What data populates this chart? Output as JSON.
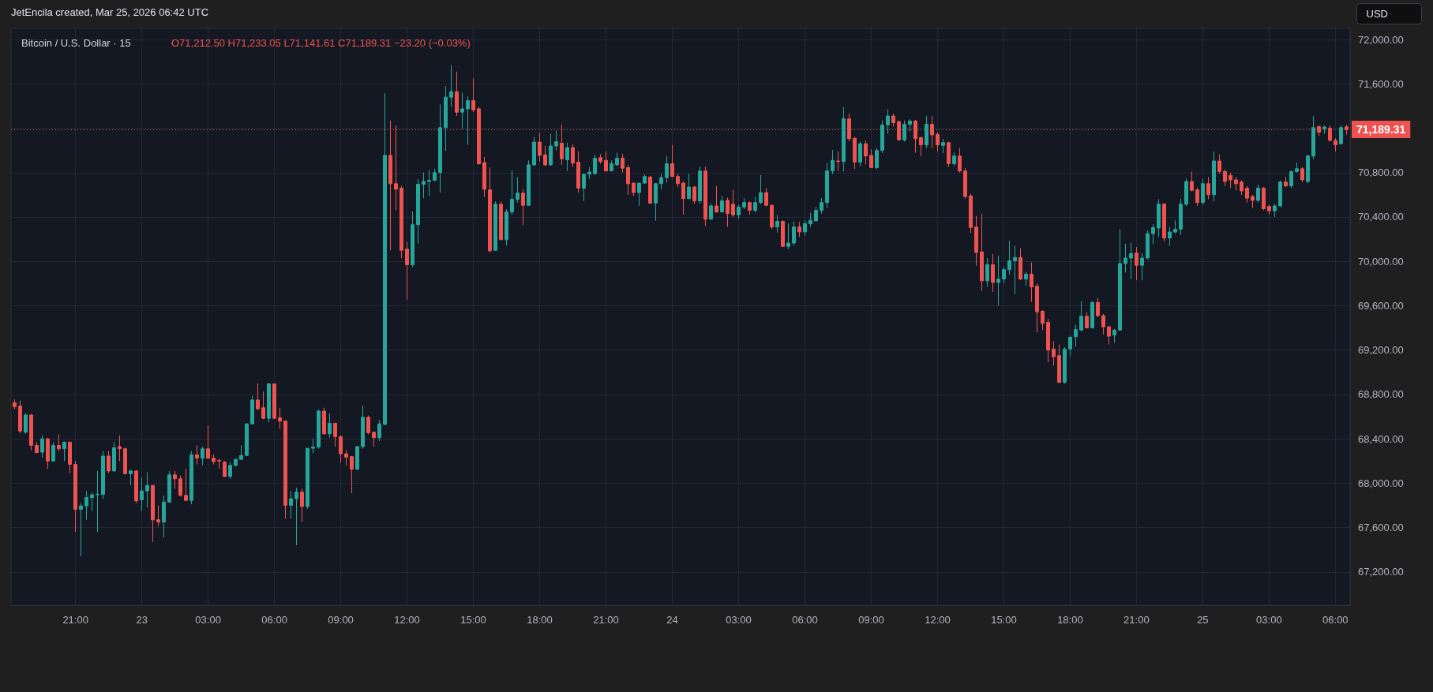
{
  "chart_data": {
    "type": "candlestick",
    "title": "Bitcoin / U.S. Dollar · 15",
    "subtitle": "O71,212.50 H71,233.05 L71,141.61 C71,189.31 −23.20 (−0.03%)",
    "annotations": [
      "JetEncila created, Mar 25, 2026 06:42 UTC",
      "USD"
    ],
    "grid": true,
    "xlim": [
      "2026-03-22T18:05",
      "2026-03-25T06:40"
    ],
    "ylim": [
      66900,
      72100
    ],
    "xticks": [
      {
        "value": "2026-03-22T21:00",
        "label": "21:00"
      },
      {
        "value": "2026-03-23T00:00",
        "label": "23"
      },
      {
        "value": "2026-03-23T03:00",
        "label": "03:00"
      },
      {
        "value": "2026-03-23T06:00",
        "label": "06:00"
      },
      {
        "value": "2026-03-23T09:00",
        "label": "09:00"
      },
      {
        "value": "2026-03-23T12:00",
        "label": "12:00"
      },
      {
        "value": "2026-03-23T15:00",
        "label": "15:00"
      },
      {
        "value": "2026-03-23T18:00",
        "label": "18:00"
      },
      {
        "value": "2026-03-23T21:00",
        "label": "21:00"
      },
      {
        "value": "2026-03-24T00:00",
        "label": "24"
      },
      {
        "value": "2026-03-24T03:00",
        "label": "03:00"
      },
      {
        "value": "2026-03-24T06:00",
        "label": "06:00"
      },
      {
        "value": "2026-03-24T09:00",
        "label": "09:00"
      },
      {
        "value": "2026-03-24T12:00",
        "label": "12:00"
      },
      {
        "value": "2026-03-24T15:00",
        "label": "15:00"
      },
      {
        "value": "2026-03-24T18:00",
        "label": "18:00"
      },
      {
        "value": "2026-03-24T21:00",
        "label": "21:00"
      },
      {
        "value": "2026-03-25T00:00",
        "label": "25"
      },
      {
        "value": "2026-03-25T03:00",
        "label": "03:00"
      },
      {
        "value": "2026-03-25T06:00",
        "label": "06:00"
      }
    ],
    "yticks": [
      {
        "value": 67200,
        "label": "67,200.00"
      },
      {
        "value": 67600,
        "label": "67,600.00"
      },
      {
        "value": 68000,
        "label": "68,000.00"
      },
      {
        "value": 68400,
        "label": "68,400.00"
      },
      {
        "value": 68800,
        "label": "68,800.00"
      },
      {
        "value": 69200,
        "label": "69,200.00"
      },
      {
        "value": 69600,
        "label": "69,600.00"
      },
      {
        "value": 70000,
        "label": "70,000.00"
      },
      {
        "value": 70400,
        "label": "70,400.00"
      },
      {
        "value": 70800,
        "label": "70,800.00"
      },
      {
        "value": 71200,
        "label": null
      },
      {
        "value": 71600,
        "label": "71,600.00"
      },
      {
        "value": 72000,
        "label": "72,000.00"
      }
    ],
    "ref_lines": [
      {
        "axis": "y",
        "value": 71189.31,
        "label": "71,189.31",
        "color": "#ef5350",
        "line_style": "dotted"
      }
    ],
    "x": [
      "2026-03-22T18:15",
      "2026-03-22T18:30",
      "2026-03-22T18:45",
      "2026-03-22T19:00",
      "2026-03-22T19:15",
      "2026-03-22T19:30",
      "2026-03-22T19:45",
      "2026-03-22T20:00",
      "2026-03-22T20:15",
      "2026-03-22T20:30",
      "2026-03-22T20:45",
      "2026-03-22T21:00",
      "2026-03-22T21:15",
      "2026-03-22T21:30",
      "2026-03-22T21:45",
      "2026-03-22T22:00",
      "2026-03-22T22:15",
      "2026-03-22T22:30",
      "2026-03-22T22:45",
      "2026-03-22T23:00",
      "2026-03-22T23:15",
      "2026-03-22T23:30",
      "2026-03-22T23:45",
      "2026-03-23T00:00",
      "2026-03-23T00:15",
      "2026-03-23T00:30",
      "2026-03-23T00:45",
      "2026-03-23T01:00",
      "2026-03-23T01:15",
      "2026-03-23T01:30",
      "2026-03-23T01:45",
      "2026-03-23T02:00",
      "2026-03-23T02:15",
      "2026-03-23T02:30",
      "2026-03-23T02:45",
      "2026-03-23T03:00",
      "2026-03-23T03:15",
      "2026-03-23T03:30",
      "2026-03-23T03:45",
      "2026-03-23T04:00",
      "2026-03-23T04:15",
      "2026-03-23T04:30",
      "2026-03-23T04:45",
      "2026-03-23T05:00",
      "2026-03-23T05:15",
      "2026-03-23T05:30",
      "2026-03-23T05:45",
      "2026-03-23T06:00",
      "2026-03-23T06:15",
      "2026-03-23T06:30",
      "2026-03-23T06:45",
      "2026-03-23T07:00",
      "2026-03-23T07:15",
      "2026-03-23T07:30",
      "2026-03-23T07:45",
      "2026-03-23T08:00",
      "2026-03-23T08:15",
      "2026-03-23T08:30",
      "2026-03-23T08:45",
      "2026-03-23T09:00",
      "2026-03-23T09:15",
      "2026-03-23T09:30",
      "2026-03-23T09:45",
      "2026-03-23T10:00",
      "2026-03-23T10:15",
      "2026-03-23T10:30",
      "2026-03-23T10:45",
      "2026-03-23T11:00",
      "2026-03-23T11:15",
      "2026-03-23T11:30",
      "2026-03-23T11:45",
      "2026-03-23T12:00",
      "2026-03-23T12:15",
      "2026-03-23T12:30",
      "2026-03-23T12:45",
      "2026-03-23T13:00",
      "2026-03-23T13:15",
      "2026-03-23T13:30",
      "2026-03-23T13:45",
      "2026-03-23T14:00",
      "2026-03-23T14:15",
      "2026-03-23T14:30",
      "2026-03-23T14:45",
      "2026-03-23T15:00",
      "2026-03-23T15:15",
      "2026-03-23T15:30",
      "2026-03-23T15:45",
      "2026-03-23T16:00",
      "2026-03-23T16:15",
      "2026-03-23T16:30",
      "2026-03-23T16:45",
      "2026-03-23T17:00",
      "2026-03-23T17:15",
      "2026-03-23T17:30",
      "2026-03-23T17:45",
      "2026-03-23T18:00",
      "2026-03-23T18:15",
      "2026-03-23T18:30",
      "2026-03-23T18:45",
      "2026-03-23T19:00",
      "2026-03-23T19:15",
      "2026-03-23T19:30",
      "2026-03-23T19:45",
      "2026-03-23T20:00",
      "2026-03-23T20:15",
      "2026-03-23T20:30",
      "2026-03-23T20:45",
      "2026-03-23T21:00",
      "2026-03-23T21:15",
      "2026-03-23T21:30",
      "2026-03-23T21:45",
      "2026-03-23T22:00",
      "2026-03-23T22:15",
      "2026-03-23T22:30",
      "2026-03-23T22:45",
      "2026-03-23T23:00",
      "2026-03-23T23:15",
      "2026-03-23T23:30",
      "2026-03-23T23:45",
      "2026-03-24T00:00",
      "2026-03-24T00:15",
      "2026-03-24T00:30",
      "2026-03-24T00:45",
      "2026-03-24T01:00",
      "2026-03-24T01:15",
      "2026-03-24T01:30",
      "2026-03-24T01:45",
      "2026-03-24T02:00",
      "2026-03-24T02:15",
      "2026-03-24T02:30",
      "2026-03-24T02:45",
      "2026-03-24T03:00",
      "2026-03-24T03:15",
      "2026-03-24T03:30",
      "2026-03-24T03:45",
      "2026-03-24T04:00",
      "2026-03-24T04:15",
      "2026-03-24T04:30",
      "2026-03-24T04:45",
      "2026-03-24T05:00",
      "2026-03-24T05:15",
      "2026-03-24T05:30",
      "2026-03-24T05:45",
      "2026-03-24T06:00",
      "2026-03-24T06:15",
      "2026-03-24T06:30",
      "2026-03-24T06:45",
      "2026-03-24T07:00",
      "2026-03-24T07:15",
      "2026-03-24T07:30",
      "2026-03-24T07:45",
      "2026-03-24T08:00",
      "2026-03-24T08:15",
      "2026-03-24T08:30",
      "2026-03-24T08:45",
      "2026-03-24T09:00",
      "2026-03-24T09:15",
      "2026-03-24T09:30",
      "2026-03-24T09:45",
      "2026-03-24T10:00",
      "2026-03-24T10:15",
      "2026-03-24T10:30",
      "2026-03-24T10:45",
      "2026-03-24T11:00",
      "2026-03-24T11:15",
      "2026-03-24T11:30",
      "2026-03-24T11:45",
      "2026-03-24T12:00",
      "2026-03-24T12:15",
      "2026-03-24T12:30",
      "2026-03-24T12:45",
      "2026-03-24T13:00",
      "2026-03-24T13:15",
      "2026-03-24T13:30",
      "2026-03-24T13:45",
      "2026-03-24T14:00",
      "2026-03-24T14:15",
      "2026-03-24T14:30",
      "2026-03-24T14:45",
      "2026-03-24T15:00",
      "2026-03-24T15:15",
      "2026-03-24T15:30",
      "2026-03-24T15:45",
      "2026-03-24T16:00",
      "2026-03-24T16:15",
      "2026-03-24T16:30",
      "2026-03-24T16:45",
      "2026-03-24T17:00",
      "2026-03-24T17:15",
      "2026-03-24T17:30",
      "2026-03-24T17:45",
      "2026-03-24T18:00",
      "2026-03-24T18:15",
      "2026-03-24T18:30",
      "2026-03-24T18:45",
      "2026-03-24T19:00",
      "2026-03-24T19:15",
      "2026-03-24T19:30",
      "2026-03-24T19:45",
      "2026-03-24T20:00",
      "2026-03-24T20:15",
      "2026-03-24T20:30",
      "2026-03-24T20:45",
      "2026-03-24T21:00",
      "2026-03-24T21:15",
      "2026-03-24T21:30",
      "2026-03-24T21:45",
      "2026-03-24T22:00",
      "2026-03-24T22:15",
      "2026-03-24T22:30",
      "2026-03-24T22:45",
      "2026-03-24T23:00",
      "2026-03-24T23:15",
      "2026-03-24T23:30",
      "2026-03-24T23:45",
      "2026-03-25T00:00",
      "2026-03-25T00:15",
      "2026-03-25T00:30",
      "2026-03-25T00:45",
      "2026-03-25T01:00",
      "2026-03-25T01:15",
      "2026-03-25T01:30",
      "2026-03-25T01:45",
      "2026-03-25T02:00",
      "2026-03-25T02:15",
      "2026-03-25T02:30",
      "2026-03-25T02:45",
      "2026-03-25T03:00",
      "2026-03-25T03:15",
      "2026-03-25T03:30",
      "2026-03-25T03:45",
      "2026-03-25T04:00",
      "2026-03-25T04:15",
      "2026-03-25T04:30",
      "2026-03-25T04:45",
      "2026-03-25T05:00",
      "2026-03-25T05:15",
      "2026-03-25T05:30",
      "2026-03-25T05:45",
      "2026-03-25T06:00",
      "2026-03-25T06:15",
      "2026-03-25T06:30"
    ],
    "ohlc": [
      [
        68725,
        68755,
        68665,
        68690
      ],
      [
        68695,
        68745,
        68450,
        68470
      ],
      [
        68460,
        68630,
        68445,
        68615
      ],
      [
        68615,
        68625,
        68300,
        68340
      ],
      [
        68340,
        68370,
        68270,
        68275
      ],
      [
        68280,
        68430,
        68230,
        68400
      ],
      [
        68400,
        68410,
        68130,
        68200
      ],
      [
        68200,
        68370,
        68195,
        68340
      ],
      [
        68340,
        68440,
        68290,
        68310
      ],
      [
        68310,
        68375,
        68200,
        68370
      ],
      [
        68370,
        68375,
        68090,
        68170
      ],
      [
        68170,
        68200,
        67560,
        67765
      ],
      [
        67765,
        67820,
        67340,
        67795
      ],
      [
        67795,
        67930,
        67670,
        67870
      ],
      [
        67870,
        67915,
        67750,
        67895
      ],
      [
        67895,
        68110,
        67560,
        67900
      ],
      [
        67900,
        68290,
        67860,
        68245
      ],
      [
        68245,
        68290,
        68090,
        68110
      ],
      [
        68110,
        68370,
        68105,
        68320
      ],
      [
        68330,
        68430,
        68200,
        68310
      ],
      [
        68310,
        68320,
        68080,
        68085
      ],
      [
        68085,
        68120,
        67980,
        68110
      ],
      [
        68110,
        68120,
        67820,
        67840
      ],
      [
        67850,
        68050,
        67750,
        67930
      ],
      [
        67930,
        68100,
        67780,
        67980
      ],
      [
        67980,
        67985,
        67470,
        67670
      ],
      [
        67670,
        67800,
        67610,
        67650
      ],
      [
        67650,
        67890,
        67510,
        67830
      ],
      [
        67830,
        68110,
        67825,
        68075
      ],
      [
        68075,
        68110,
        67950,
        68040
      ],
      [
        68040,
        68070,
        67880,
        67890
      ],
      [
        67890,
        68130,
        67840,
        67845
      ],
      [
        67845,
        68290,
        67810,
        68255
      ],
      [
        68255,
        68340,
        68170,
        68225
      ],
      [
        68225,
        68330,
        68160,
        68310
      ],
      [
        68310,
        68520,
        68220,
        68225
      ],
      [
        68225,
        68260,
        68170,
        68195
      ],
      [
        68205,
        68220,
        68130,
        68200
      ],
      [
        68190,
        68200,
        68055,
        68060
      ],
      [
        68060,
        68190,
        68040,
        68160
      ],
      [
        68160,
        68220,
        68150,
        68215
      ],
      [
        68215,
        68340,
        68210,
        68250
      ],
      [
        68250,
        68540,
        68245,
        68535
      ],
      [
        68535,
        68790,
        68530,
        68750
      ],
      [
        68750,
        68900,
        68660,
        68670
      ],
      [
        68680,
        68825,
        68575,
        68585
      ],
      [
        68585,
        68905,
        68550,
        68895
      ],
      [
        68895,
        68900,
        68580,
        68585
      ],
      [
        68590,
        68680,
        68490,
        68560
      ],
      [
        68560,
        68565,
        67680,
        67800
      ],
      [
        67800,
        67930,
        67680,
        67860
      ],
      [
        67860,
        67960,
        67440,
        67920
      ],
      [
        67920,
        67950,
        67650,
        67790
      ],
      [
        67790,
        68315,
        67770,
        68315
      ],
      [
        68315,
        68400,
        68270,
        68325
      ],
      [
        68325,
        68665,
        68310,
        68650
      ],
      [
        68650,
        68680,
        68440,
        68445
      ],
      [
        68445,
        68630,
        68410,
        68540
      ],
      [
        68540,
        68545,
        68330,
        68420
      ],
      [
        68420,
        68430,
        68185,
        68265
      ],
      [
        68265,
        68300,
        68160,
        68235
      ],
      [
        68240,
        68245,
        67910,
        68125
      ],
      [
        68125,
        68335,
        68120,
        68330
      ],
      [
        68330,
        68700,
        68310,
        68595
      ],
      [
        68595,
        68610,
        68440,
        68455
      ],
      [
        68460,
        68465,
        68330,
        68410
      ],
      [
        68410,
        68570,
        68380,
        68535
      ],
      [
        68530,
        71515,
        68525,
        70955
      ],
      [
        70955,
        71270,
        70100,
        70700
      ],
      [
        70700,
        71225,
        70460,
        70650
      ],
      [
        70660,
        70680,
        70030,
        70100
      ],
      [
        70110,
        70175,
        69655,
        69970
      ],
      [
        69970,
        70450,
        69950,
        70330
      ],
      [
        70330,
        70740,
        70160,
        70695
      ],
      [
        70695,
        70800,
        70570,
        70720
      ],
      [
        70720,
        70825,
        70590,
        70730
      ],
      [
        70730,
        70835,
        70725,
        70800
      ],
      [
        70800,
        71415,
        70620,
        71205
      ],
      [
        71205,
        71580,
        70995,
        71480
      ],
      [
        71480,
        71770,
        71390,
        71530
      ],
      [
        71530,
        71710,
        71310,
        71345
      ],
      [
        71345,
        71520,
        71190,
        71375
      ],
      [
        71375,
        71490,
        71050,
        71450
      ],
      [
        71450,
        71650,
        71345,
        71365
      ],
      [
        71375,
        71390,
        70870,
        70880
      ],
      [
        70890,
        70940,
        70580,
        70650
      ],
      [
        70645,
        70845,
        70080,
        70095
      ],
      [
        70100,
        70540,
        70095,
        70515
      ],
      [
        70515,
        70540,
        70195,
        70195
      ],
      [
        70195,
        70470,
        70140,
        70445
      ],
      [
        70445,
        70820,
        70420,
        70560
      ],
      [
        70560,
        70760,
        70530,
        70615
      ],
      [
        70615,
        70650,
        70325,
        70505
      ],
      [
        70505,
        70910,
        70500,
        70870
      ],
      [
        70870,
        71120,
        70860,
        71075
      ],
      [
        71075,
        71160,
        70900,
        70955
      ],
      [
        70960,
        71040,
        70860,
        70870
      ],
      [
        70870,
        71150,
        70860,
        71040
      ],
      [
        71040,
        71180,
        71000,
        71080
      ],
      [
        71065,
        71235,
        70870,
        70925
      ],
      [
        70915,
        71070,
        70815,
        71025
      ],
      [
        71025,
        71055,
        70850,
        70885
      ],
      [
        70895,
        70990,
        70620,
        70660
      ],
      [
        70660,
        70795,
        70545,
        70785
      ],
      [
        70785,
        70850,
        70740,
        70805
      ],
      [
        70790,
        70960,
        70780,
        70930
      ],
      [
        70935,
        70965,
        70880,
        70900
      ],
      [
        70910,
        70990,
        70810,
        70815
      ],
      [
        70815,
        70910,
        70810,
        70880
      ],
      [
        70870,
        70980,
        70860,
        70930
      ],
      [
        70930,
        70970,
        70800,
        70840
      ],
      [
        70845,
        70870,
        70600,
        70700
      ],
      [
        70705,
        70710,
        70590,
        70620
      ],
      [
        70620,
        70710,
        70500,
        70705
      ],
      [
        70705,
        70785,
        70700,
        70765
      ],
      [
        70760,
        70770,
        70515,
        70525
      ],
      [
        70525,
        70705,
        70365,
        70700
      ],
      [
        70700,
        70790,
        70650,
        70755
      ],
      [
        70755,
        70950,
        70710,
        70880
      ],
      [
        70880,
        71050,
        70760,
        70765
      ],
      [
        70765,
        70790,
        70670,
        70700
      ],
      [
        70705,
        70720,
        70420,
        70565
      ],
      [
        70565,
        70790,
        70560,
        70670
      ],
      [
        70670,
        70680,
        70520,
        70545
      ],
      [
        70545,
        70855,
        70520,
        70815
      ],
      [
        70815,
        70855,
        70320,
        70380
      ],
      [
        70380,
        70520,
        70375,
        70500
      ],
      [
        70500,
        70680,
        70440,
        70445
      ],
      [
        70445,
        70590,
        70440,
        70545
      ],
      [
        70550,
        70575,
        70310,
        70430
      ],
      [
        70515,
        70645,
        70400,
        70420
      ],
      [
        70420,
        70510,
        70380,
        70490
      ],
      [
        70490,
        70570,
        70470,
        70530
      ],
      [
        70530,
        70540,
        70420,
        70460
      ],
      [
        70460,
        70580,
        70440,
        70530
      ],
      [
        70530,
        70780,
        70515,
        70620
      ],
      [
        70620,
        70660,
        70500,
        70505
      ],
      [
        70505,
        70510,
        70290,
        70310
      ],
      [
        70310,
        70420,
        70260,
        70360
      ],
      [
        70360,
        70370,
        70130,
        70135
      ],
      [
        70135,
        70340,
        70110,
        70165
      ],
      [
        70165,
        70360,
        70145,
        70310
      ],
      [
        70310,
        70355,
        70220,
        70265
      ],
      [
        70265,
        70370,
        70230,
        70340
      ],
      [
        70340,
        70440,
        70310,
        70370
      ],
      [
        70365,
        70490,
        70360,
        70460
      ],
      [
        70460,
        70570,
        70430,
        70530
      ],
      [
        70530,
        70890,
        70480,
        70815
      ],
      [
        70815,
        71005,
        70785,
        70910
      ],
      [
        70905,
        70990,
        70815,
        70900
      ],
      [
        70900,
        71390,
        70810,
        71285
      ],
      [
        71285,
        71335,
        71085,
        71105
      ],
      [
        71110,
        71120,
        70835,
        70895
      ],
      [
        70895,
        71080,
        70855,
        71060
      ],
      [
        71060,
        71090,
        70875,
        70950
      ],
      [
        70955,
        71010,
        70840,
        70845
      ],
      [
        70845,
        71025,
        70830,
        71000
      ],
      [
        71000,
        71270,
        70975,
        71230
      ],
      [
        71230,
        71370,
        71150,
        71310
      ],
      [
        71310,
        71330,
        71215,
        71250
      ],
      [
        71260,
        71270,
        71090,
        71095
      ],
      [
        71095,
        71270,
        71080,
        71235
      ],
      [
        71235,
        71280,
        71170,
        71265
      ],
      [
        71265,
        71275,
        70980,
        71105
      ],
      [
        71115,
        71125,
        70950,
        71050
      ],
      [
        71050,
        71310,
        71020,
        71235
      ],
      [
        71235,
        71310,
        71020,
        71140
      ],
      [
        71145,
        71165,
        70990,
        71050
      ],
      [
        71045,
        71105,
        70975,
        71070
      ],
      [
        71070,
        71075,
        70850,
        70880
      ],
      [
        70880,
        70980,
        70860,
        70950
      ],
      [
        70950,
        71020,
        70800,
        70815
      ],
      [
        70815,
        70840,
        70565,
        70585
      ],
      [
        70590,
        70610,
        70255,
        70305
      ],
      [
        70310,
        70410,
        69960,
        70080
      ],
      [
        70085,
        70430,
        69735,
        69825
      ],
      [
        69825,
        70030,
        69770,
        69970
      ],
      [
        69970,
        70065,
        69725,
        69810
      ],
      [
        69810,
        70050,
        69600,
        69840
      ],
      [
        69840,
        69950,
        69800,
        69925
      ],
      [
        69925,
        70185,
        69880,
        70005
      ],
      [
        70005,
        70140,
        69705,
        70035
      ],
      [
        70035,
        70120,
        69830,
        69840
      ],
      [
        69840,
        69905,
        69780,
        69885
      ],
      [
        69885,
        69990,
        69635,
        69770
      ],
      [
        69775,
        69800,
        69360,
        69545
      ],
      [
        69550,
        69560,
        69380,
        69440
      ],
      [
        69450,
        69480,
        69090,
        69200
      ],
      [
        69210,
        69280,
        69060,
        69140
      ],
      [
        69150,
        69250,
        68900,
        68910
      ],
      [
        68910,
        69225,
        68895,
        69210
      ],
      [
        69210,
        69330,
        69145,
        69315
      ],
      [
        69320,
        69430,
        69230,
        69385
      ],
      [
        69380,
        69640,
        69370,
        69505
      ],
      [
        69505,
        69540,
        69395,
        69400
      ],
      [
        69400,
        69640,
        69395,
        69630
      ],
      [
        69630,
        69670,
        69495,
        69510
      ],
      [
        69510,
        69525,
        69340,
        69410
      ],
      [
        69410,
        69420,
        69250,
        69325
      ],
      [
        69335,
        69390,
        69265,
        69380
      ],
      [
        69380,
        70290,
        69375,
        69980
      ],
      [
        69980,
        70160,
        69900,
        70030
      ],
      [
        70030,
        70170,
        69840,
        70070
      ],
      [
        70075,
        70130,
        69830,
        69965
      ],
      [
        69965,
        70075,
        69830,
        70030
      ],
      [
        70030,
        70280,
        70020,
        70250
      ],
      [
        70250,
        70335,
        70155,
        70305
      ],
      [
        70300,
        70560,
        70220,
        70515
      ],
      [
        70515,
        70530,
        70180,
        70210
      ],
      [
        70210,
        70310,
        70140,
        70265
      ],
      [
        70265,
        70370,
        70250,
        70290
      ],
      [
        70290,
        70565,
        70240,
        70515
      ],
      [
        70515,
        70750,
        70500,
        70720
      ],
      [
        70720,
        70810,
        70630,
        70640
      ],
      [
        70645,
        70665,
        70500,
        70530
      ],
      [
        70530,
        70745,
        70510,
        70700
      ],
      [
        70700,
        70760,
        70560,
        70600
      ],
      [
        70600,
        70990,
        70540,
        70905
      ],
      [
        70905,
        70965,
        70790,
        70810
      ],
      [
        70810,
        70830,
        70680,
        70720
      ],
      [
        70775,
        70800,
        70660,
        70735
      ],
      [
        70735,
        70760,
        70640,
        70700
      ],
      [
        70715,
        70730,
        70600,
        70635
      ],
      [
        70660,
        70680,
        70530,
        70570
      ],
      [
        70585,
        70600,
        70480,
        70550
      ],
      [
        70550,
        70690,
        70530,
        70660
      ],
      [
        70660,
        70670,
        70460,
        70475
      ],
      [
        70495,
        70510,
        70420,
        70455
      ],
      [
        70455,
        70520,
        70400,
        70500
      ],
      [
        70500,
        70730,
        70490,
        70715
      ],
      [
        70715,
        70760,
        70670,
        70680
      ],
      [
        70680,
        70820,
        70660,
        70810
      ],
      [
        70810,
        70890,
        70800,
        70835
      ],
      [
        70835,
        70850,
        70715,
        70735
      ],
      [
        70720,
        70960,
        70705,
        70950
      ],
      [
        70950,
        71310,
        70920,
        71205
      ],
      [
        71215,
        71225,
        71130,
        71165
      ],
      [
        71195,
        71225,
        71150,
        71210
      ],
      [
        71200,
        71225,
        71080,
        71090
      ],
      [
        71090,
        71110,
        70990,
        71050
      ],
      [
        71060,
        71225,
        71055,
        71205
      ],
      [
        71212.5,
        71233.05,
        71141.61,
        71189.31
      ]
    ]
  }
}
